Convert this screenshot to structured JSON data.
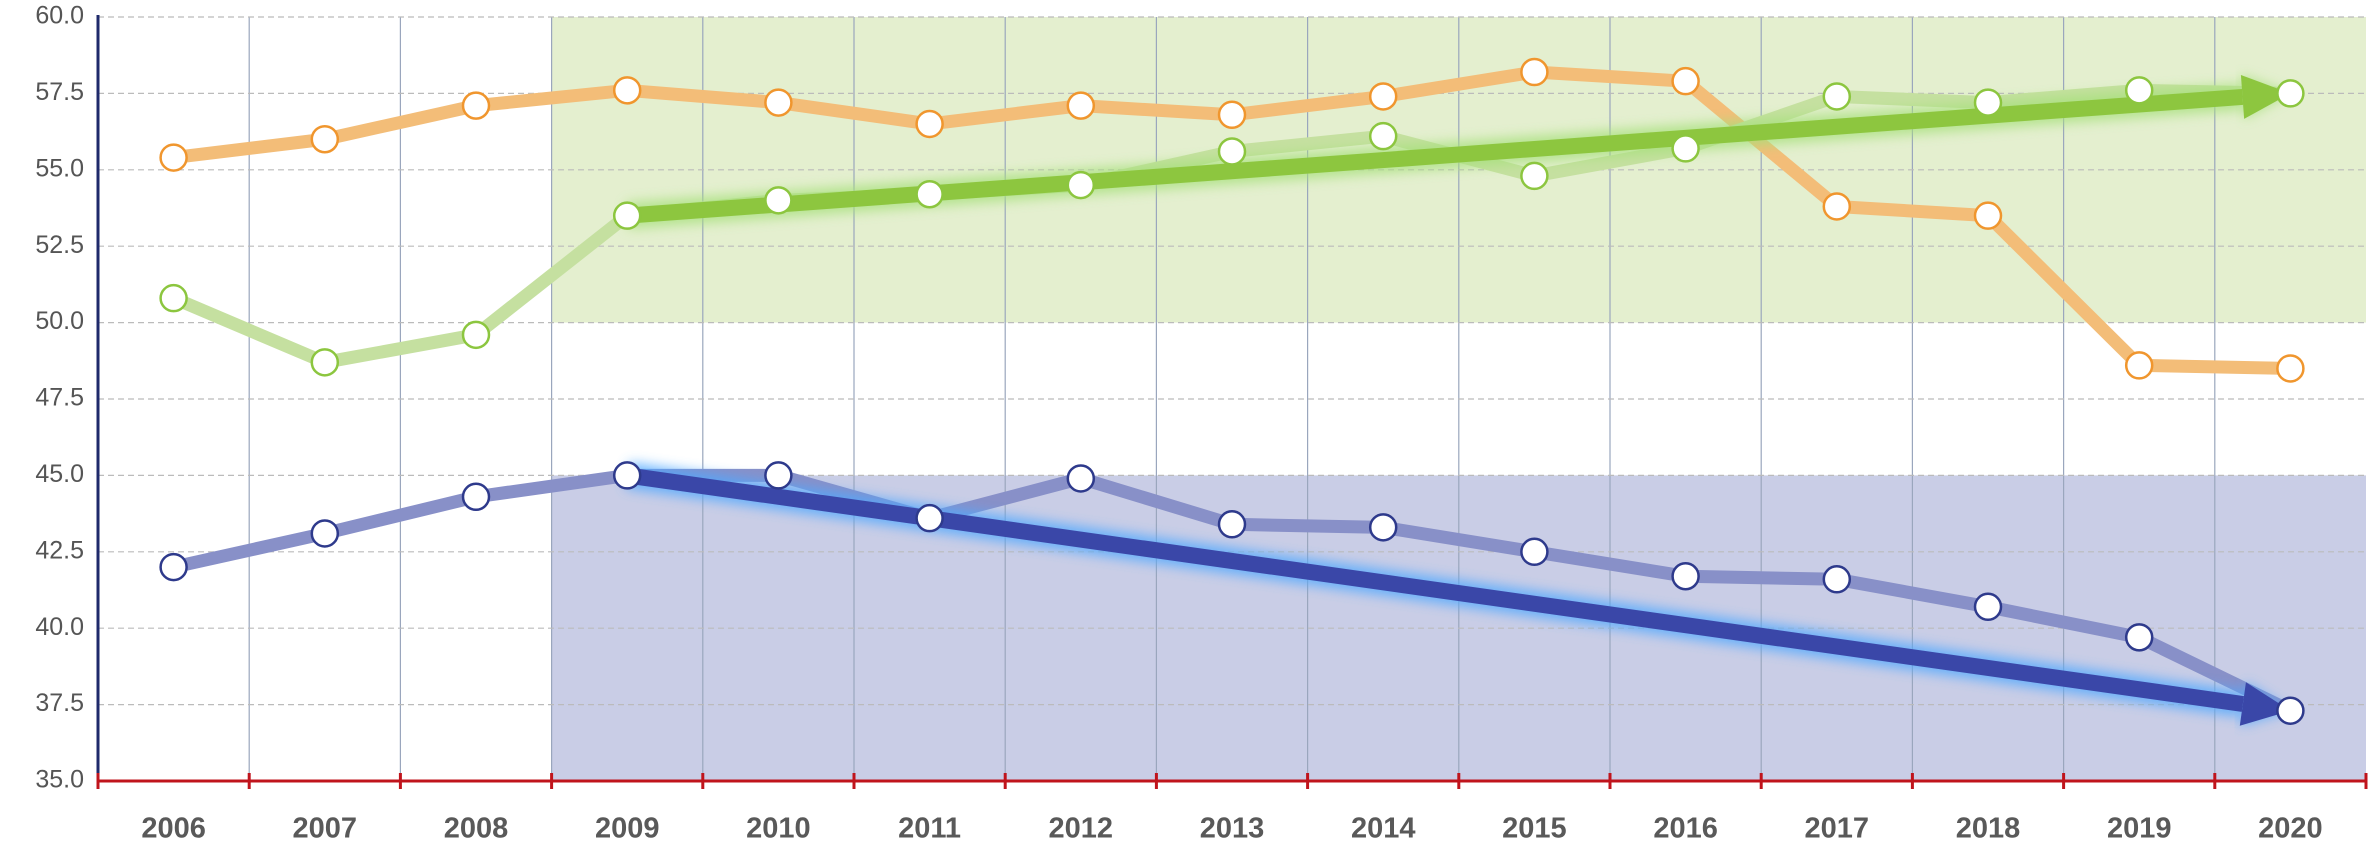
{
  "chart_data": {
    "type": "line",
    "categories": [
      "2006",
      "2007",
      "2008",
      "2009",
      "2010",
      "2011",
      "2012",
      "2013",
      "2014",
      "2015",
      "2016",
      "2017",
      "2018",
      "2019",
      "2020"
    ],
    "series": [
      {
        "color": "#f3bd78",
        "marker_color": "#f0962e",
        "values": [
          55.4,
          56.0,
          57.1,
          57.6,
          57.2,
          56.5,
          57.1,
          56.8,
          57.4,
          58.2,
          57.9,
          53.8,
          53.5,
          48.6,
          48.5
        ]
      },
      {
        "color": "#c5e0a0",
        "marker_color": "#8cc63f",
        "trend_color": "#8dc63f",
        "values": [
          50.8,
          48.7,
          49.6,
          53.5,
          54.0,
          54.2,
          54.5,
          55.6,
          56.1,
          54.8,
          55.7,
          57.4,
          57.2,
          57.6,
          57.5
        ]
      },
      {
        "color": "#8890c8",
        "marker_color": "#2e3a8c",
        "trend_color": "#3a47a8",
        "values": [
          42.0,
          43.1,
          44.3,
          45.0,
          45.0,
          43.6,
          44.9,
          43.4,
          43.3,
          42.5,
          41.7,
          41.6,
          40.7,
          39.7,
          37.3
        ]
      }
    ],
    "regions": [
      {
        "y": [
          50,
          60
        ],
        "color": "#e4efcf"
      },
      {
        "y": [
          35,
          45
        ],
        "color": "#c9cde6"
      }
    ],
    "ylim": [
      35,
      60
    ],
    "yticks": [
      {
        "value": 35,
        "label": "35.0"
      },
      {
        "value": 37.5,
        "label": "37.5"
      },
      {
        "value": 40,
        "label": "40.0"
      },
      {
        "value": 42.5,
        "label": "42.5"
      },
      {
        "value": 45,
        "label": "45.0"
      },
      {
        "value": 47.5,
        "label": "47.5"
      },
      {
        "value": 50,
        "label": "50.0"
      },
      {
        "value": 52.5,
        "label": "52.5"
      },
      {
        "value": 55,
        "label": "55.0"
      },
      {
        "value": 57.5,
        "label": "57.5"
      },
      {
        "value": 60,
        "label": "60.0"
      }
    ],
    "grid": true
  }
}
